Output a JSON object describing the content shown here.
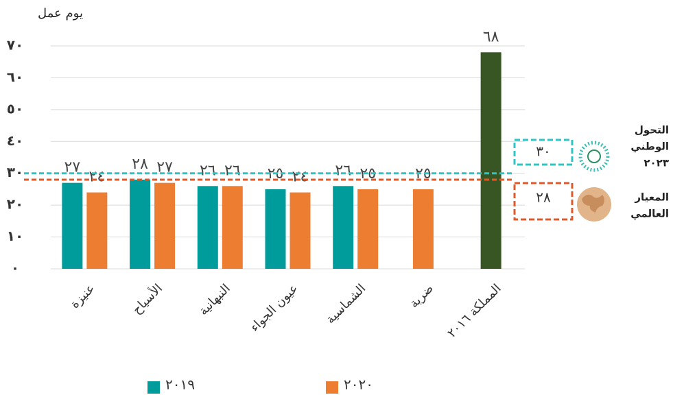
{
  "chart_data": {
    "type": "bar",
    "y_label": "يوم عمل",
    "categories": [
      "عنيزة",
      "الأسياح",
      "النبهانية",
      "عيون الجواء",
      "الشماسية",
      "ضرية",
      "المملكة ٢٠١٦"
    ],
    "series": [
      {
        "name": "٢٠١٩",
        "color": "#009b9b",
        "values": [
          27,
          28,
          26,
          25,
          26,
          null,
          null
        ],
        "value_labels": [
          "٢٧",
          "٢٨",
          "٢٦",
          "٢٥",
          "٢٦",
          null,
          null
        ]
      },
      {
        "name": "٢٠٢٠",
        "color": "#ed7d31",
        "values": [
          24,
          27,
          26,
          24,
          25,
          25,
          null
        ],
        "value_labels": [
          "٢٤",
          "٢٧",
          "٢٦",
          "٢٤",
          "٢٥",
          "٢٥",
          null
        ]
      },
      {
        "color": "#375623",
        "values": [
          null,
          null,
          null,
          null,
          null,
          null,
          68
        ],
        "value_labels": [
          null,
          null,
          null,
          null,
          null,
          null,
          "٦٨"
        ]
      }
    ],
    "ylim": [
      0,
      70
    ],
    "yticks": [
      {
        "value": 0,
        "label": "٠"
      },
      {
        "value": 10,
        "label": "١٠"
      },
      {
        "value": 20,
        "label": "٢٠"
      },
      {
        "value": 30,
        "label": "٣٠"
      },
      {
        "value": 40,
        "label": "٤٠"
      },
      {
        "value": 50,
        "label": "٥٠"
      },
      {
        "value": 60,
        "label": "٦٠"
      },
      {
        "value": 70,
        "label": "٧٠"
      }
    ],
    "grid": true,
    "reference_lines": [
      {
        "value": 30,
        "label": "٣٠",
        "color": "#2ec4c4",
        "text": [
          "التحول",
          "الوطني",
          "٢٠٢٣"
        ]
      },
      {
        "value": 28,
        "label": "٢٨",
        "color": "#e0592a",
        "text": [
          "المعيار",
          "العالمي"
        ]
      }
    ]
  }
}
